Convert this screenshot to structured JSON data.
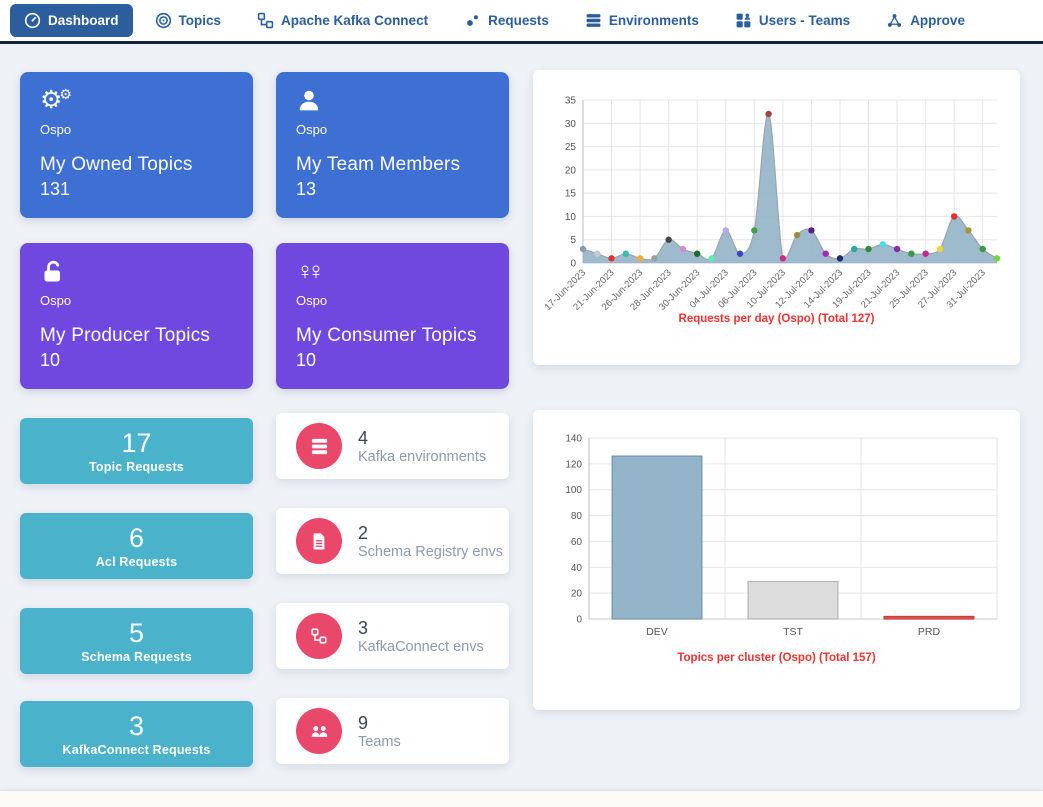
{
  "colors": {
    "nav_blue": "#2c5e9e",
    "card_blue": "#3e6fd3",
    "card_purple": "#7048e0",
    "card_teal": "#4bb2cc",
    "badge_red": "#e9486b",
    "chart_title_red": "#ee3432",
    "page_bg": "#eef1f6"
  },
  "nav": {
    "items": [
      {
        "label": "Dashboard",
        "icon": "dashboard-icon",
        "active": true
      },
      {
        "label": "Topics",
        "icon": "topics-icon",
        "active": false
      },
      {
        "label": "Apache Kafka Connect",
        "icon": "kafka-connect-icon",
        "active": false
      },
      {
        "label": "Requests",
        "icon": "requests-icon",
        "active": false
      },
      {
        "label": "Environments",
        "icon": "environments-icon",
        "active": false
      },
      {
        "label": "Users - Teams",
        "icon": "users-teams-icon",
        "active": false
      },
      {
        "label": "Approve",
        "icon": "approve-icon",
        "active": false
      }
    ]
  },
  "stat_cards": [
    {
      "team": "Ospo",
      "title": "My Owned Topics",
      "value": "131",
      "icon": "gears-icon",
      "color": "blue"
    },
    {
      "team": "Ospo",
      "title": "My Team Members",
      "value": "13",
      "icon": "user-icon",
      "color": "blue"
    },
    {
      "team": "Ospo",
      "title": "My Producer Topics",
      "value": "10",
      "icon": "unlock-icon",
      "color": "purple"
    },
    {
      "team": "Ospo",
      "title": "My Consumer Topics",
      "value": "10",
      "icon": "consumers-icon",
      "color": "purple"
    }
  ],
  "request_cards": [
    {
      "value": "17",
      "label": "Topic Requests"
    },
    {
      "value": "6",
      "label": "Acl Requests"
    },
    {
      "value": "5",
      "label": "Schema Requests"
    },
    {
      "value": "3",
      "label": "KafkaConnect Requests"
    }
  ],
  "env_cards": [
    {
      "value": "4",
      "label": "Kafka environments",
      "icon": "server-icon"
    },
    {
      "value": "2",
      "label": "Schema Registry envs",
      "icon": "document-icon"
    },
    {
      "value": "3",
      "label": "KafkaConnect envs",
      "icon": "connect-icon"
    },
    {
      "value": "9",
      "label": "Teams",
      "icon": "team-icon"
    }
  ],
  "chart_data": [
    {
      "type": "area",
      "title": "Requests per day (Ospo) (Total 127)",
      "x_tick_labels": [
        "17-Jun-2023",
        "21-Jun-2023",
        "26-Jun-2023",
        "28-Jun-2023",
        "30-Jun-2023",
        "04-Jul-2023",
        "06-Jul-2023",
        "10-Jul-2023",
        "12-Jul-2023",
        "14-Jul-2023",
        "19-Jul-2023",
        "21-Jul-2023",
        "25-Jul-2023",
        "27-Jul-2023",
        "31-Jul-2023"
      ],
      "label_every": 2,
      "values": [
        3,
        2,
        1,
        2,
        1,
        1,
        5,
        3,
        2,
        1,
        7,
        2,
        7,
        32,
        1,
        6,
        7,
        2,
        1,
        3,
        3,
        4,
        3,
        2,
        2,
        3,
        10,
        7,
        3,
        1
      ],
      "point_colors": [
        "#8a9aa8",
        "#c8c8c8",
        "#e03131",
        "#3dbdb0",
        "#f2a93b",
        "#9aa0a6",
        "#45474f",
        "#cf8bd8",
        "#1e6b2e",
        "#5ef0b0",
        "#b7a6e8",
        "#3b49c0",
        "#43a047",
        "#a04545",
        "#d12b8a",
        "#9a8a3a",
        "#5b1f8a",
        "#a02bb5",
        "#222a70",
        "#2aa8a0",
        "#2f8a3a",
        "#4fd8e8",
        "#8a2ba0",
        "#3a9a40",
        "#c02b8a",
        "#f2d535",
        "#e03131",
        "#a8943a",
        "#3a9a40",
        "#6fd83a"
      ],
      "ylim": [
        0,
        35
      ],
      "ytick_step": 5,
      "area_fill": "#94b4c9",
      "line_color": "#9aa5ad",
      "grid": true,
      "legend": false
    },
    {
      "type": "bar",
      "title": "Topics per cluster (Ospo) (Total 157)",
      "categories": [
        "DEV",
        "TST",
        "PRD"
      ],
      "values": [
        126,
        29,
        2
      ],
      "bar_fills": [
        "#94b4c9",
        "#dcdcdc",
        "#e25353"
      ],
      "bar_borders": [
        "#7096ad",
        "#b3b3b3",
        "#c43d3d"
      ],
      "ylim": [
        0,
        140
      ],
      "ytick_step": 20,
      "grid": true,
      "legend": false
    }
  ]
}
